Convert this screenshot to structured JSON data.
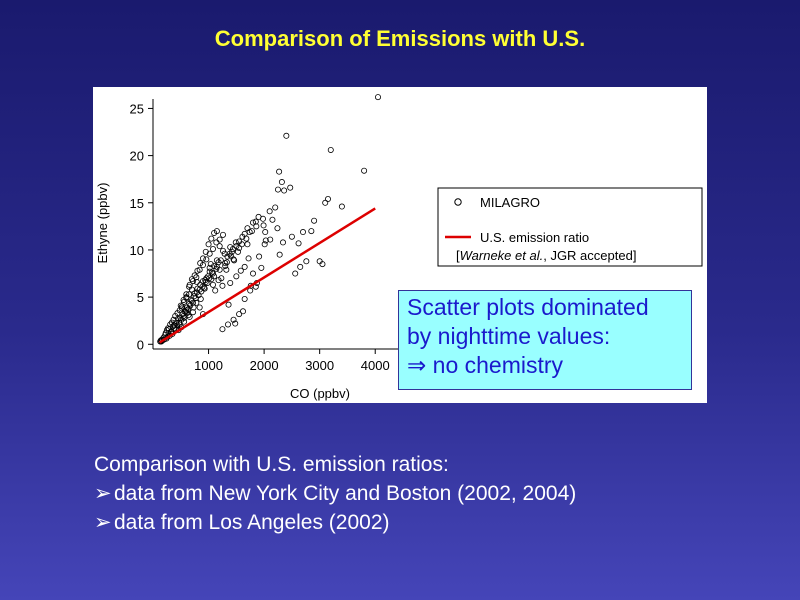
{
  "slide": {
    "title": "Comparison of Emissions with U.S."
  },
  "callout": {
    "lines": [
      "Scatter plots dominated",
      "by nighttime values:",
      "⇒ no chemistry"
    ]
  },
  "bullets": {
    "intro": "Comparison with U.S. emission ratios:",
    "items": [
      "data from New York City and Boston (2002, 2004)",
      "data from Los Angeles (2002)"
    ],
    "marker": "➢"
  },
  "chart_data": {
    "type": "scatter",
    "xlabel": "CO (ppbv)",
    "ylabel": "Ethyne (ppbv)",
    "xlim": [
      0,
      4500
    ],
    "ylim": [
      -0.5,
      26
    ],
    "x_ticks": [
      1000,
      2000,
      3000,
      4000
    ],
    "y_ticks": [
      0,
      5,
      10,
      15,
      20,
      25
    ],
    "grid": false,
    "legend": {
      "placement": "right",
      "entries": [
        {
          "label": "MILAGRO",
          "kind": "marker",
          "color": "#000000"
        },
        {
          "label": "U.S. emission ratio",
          "kind": "line",
          "color": "#dd0000"
        }
      ],
      "citation_author": "Warneke et al.",
      "citation_rest": ", JGR accepted]",
      "citation_open": "["
    },
    "series": [
      {
        "name": "MILAGRO",
        "marker": "open-circle",
        "x": [
          4050,
          2400,
          2270,
          2320,
          2250,
          2360,
          2470,
          2200,
          2150,
          3200,
          3150,
          3400,
          3800,
          1990,
          2020,
          2240,
          2340,
          2110,
          2010,
          1850,
          3100,
          3050,
          1950,
          1800,
          1720,
          1650,
          1580,
          1500,
          1460,
          1390,
          1250,
          1320,
          1420,
          1180,
          1120,
          2280,
          2560,
          2760,
          3000,
          2650,
          2850,
          2030,
          1870,
          1910,
          1680,
          1550,
          1330,
          1230,
          1760,
          1620,
          1480,
          1360,
          1020,
          1080,
          930,
          860,
          790,
          730,
          680,
          640,
          600,
          560,
          520,
          480,
          450,
          410,
          380,
          350,
          330,
          300,
          280,
          260,
          240,
          220,
          200,
          190,
          170,
          160,
          150,
          140,
          130,
          1050,
          980,
          920,
          870,
          820,
          770,
          720,
          670,
          630,
          590,
          550,
          510,
          470,
          440,
          1150,
          1100,
          1010,
          950,
          890,
          840,
          790,
          745,
          700,
          655,
          615,
          575,
          535,
          495,
          1500,
          1400,
          1300,
          1200,
          1150,
          1080,
          1020,
          960,
          900,
          850,
          800,
          750,
          1700,
          1600,
          1530,
          1450,
          1380,
          1300,
          1220,
          1140,
          1060,
          990,
          940,
          1900,
          1780,
          1650,
          1550,
          1440,
          1340,
          1260,
          1180,
          1100,
          1040,
          2100,
          1980,
          1860,
          1740,
          1610,
          1490,
          1390,
          1290,
          900,
          840,
          780,
          720,
          660,
          610,
          560,
          510,
          460,
          420,
          390,
          360,
          320,
          290,
          700,
          650,
          600,
          560,
          520,
          480,
          440,
          400,
          370,
          340,
          310,
          270,
          250,
          230,
          1250,
          1350,
          1450,
          1550,
          1650,
          1750,
          1850,
          2500,
          2620,
          2700,
          2900,
          1700,
          1800,
          600,
          650,
          700,
          750,
          800,
          850,
          900,
          950,
          1000,
          1050,
          1100,
          1150,
          1200,
          500,
          550,
          600,
          660,
          720,
          780,
          840,
          900,
          960,
          1020,
          1080,
          1140,
          1200,
          1260
        ],
        "y": [
          26.2,
          22.1,
          18.3,
          17.2,
          16.4,
          16.3,
          16.6,
          14.5,
          13.2,
          20.6,
          15.4,
          14.6,
          18.4,
          12.6,
          11.9,
          12.3,
          10.8,
          11.1,
          10.6,
          13.0,
          15.0,
          8.5,
          8.1,
          7.5,
          9.1,
          8.2,
          7.8,
          7.2,
          8.9,
          6.5,
          6.2,
          7.9,
          9.8,
          6.8,
          5.7,
          9.5,
          7.5,
          8.8,
          8.8,
          8.2,
          12.0,
          11.0,
          6.5,
          9.3,
          11.2,
          10.2,
          8.7,
          7.0,
          6.2,
          3.5,
          2.2,
          4.2,
          7.7,
          6.3,
          5.9,
          4.8,
          5.5,
          3.9,
          4.7,
          3.1,
          3.6,
          2.4,
          3.8,
          2.1,
          2.7,
          1.6,
          2.0,
          1.1,
          1.4,
          0.9,
          1.2,
          0.8,
          0.6,
          1.0,
          0.5,
          0.7,
          0.4,
          0.5,
          0.3,
          0.4,
          0.3,
          6.9,
          6.5,
          6.0,
          5.6,
          5.2,
          4.9,
          4.4,
          4.1,
          3.7,
          3.4,
          3.0,
          2.6,
          2.3,
          2.0,
          8.2,
          7.2,
          7.0,
          6.6,
          6.1,
          5.8,
          6.6,
          5.1,
          4.6,
          4.3,
          3.9,
          3.5,
          3.2,
          2.8,
          10.4,
          9.4,
          8.6,
          7.9,
          8.9,
          7.5,
          8.1,
          7.0,
          6.7,
          6.3,
          5.9,
          5.4,
          12.3,
          10.6,
          9.8,
          9.0,
          9.6,
          8.3,
          8.9,
          8.0,
          7.6,
          7.2,
          6.8,
          13.5,
          12.0,
          11.7,
          10.9,
          10.1,
          9.3,
          9.9,
          8.7,
          8.3,
          8.5,
          14.1,
          13.3,
          12.5,
          11.9,
          11.4,
          10.8,
          10.3,
          9.6,
          3.2,
          3.9,
          4.4,
          3.4,
          2.9,
          3.3,
          2.8,
          1.8,
          1.5,
          2.3,
          1.7,
          1.9,
          1.3,
          1.6,
          5.8,
          5.3,
          4.9,
          4.5,
          4.0,
          3.6,
          3.3,
          3.0,
          2.6,
          2.3,
          2.1,
          1.7,
          1.5,
          1.2,
          1.6,
          2.1,
          2.6,
          3.2,
          4.8,
          5.7,
          6.1,
          11.4,
          10.7,
          11.9,
          13.1,
          10.6,
          12.9,
          5.0,
          6.1,
          6.9,
          7.3,
          7.8,
          8.6,
          9.1,
          9.8,
          10.6,
          11.2,
          11.8,
          12.0,
          10.4,
          4.1,
          4.7,
          5.3,
          6.3,
          6.7,
          7.1,
          7.9,
          8.4,
          9.0,
          9.6,
          10.1,
          10.8,
          11.1,
          11.6
        ]
      },
      {
        "name": "U.S. emission ratio",
        "kind": "line",
        "x": [
          120,
          4000
        ],
        "y": [
          0.2,
          14.4
        ]
      }
    ]
  }
}
